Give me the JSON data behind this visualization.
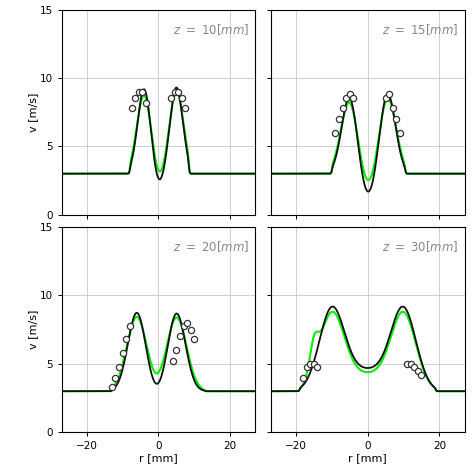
{
  "xlabel": "r [mm]",
  "ylabel": "v [m/s]",
  "xlim": [
    -27,
    27
  ],
  "ylim": [
    0,
    15
  ],
  "yticks": [
    0,
    5,
    10,
    15
  ],
  "xticks": [
    -20,
    0,
    20
  ],
  "background_color": "#ffffff",
  "grid_color": "#c8c8c8",
  "line_black_color": "#111111",
  "line_green_color": "#00ee00",
  "marker_facecolor": "#ffffff",
  "marker_edgecolor": "#333333",
  "label_color": "#888888",
  "subplot_labels": [
    "z = 10[mm]",
    "z = 15[mm]",
    "z = 20[mm]",
    "z = 30[mm]"
  ],
  "base_vel": 3.0,
  "linewidth_black": 1.3,
  "linewidth_green": 1.5,
  "marker_size": 20,
  "marker_lw": 0.9,
  "label_fontsize": 8.5,
  "tick_fontsize": 7.5
}
